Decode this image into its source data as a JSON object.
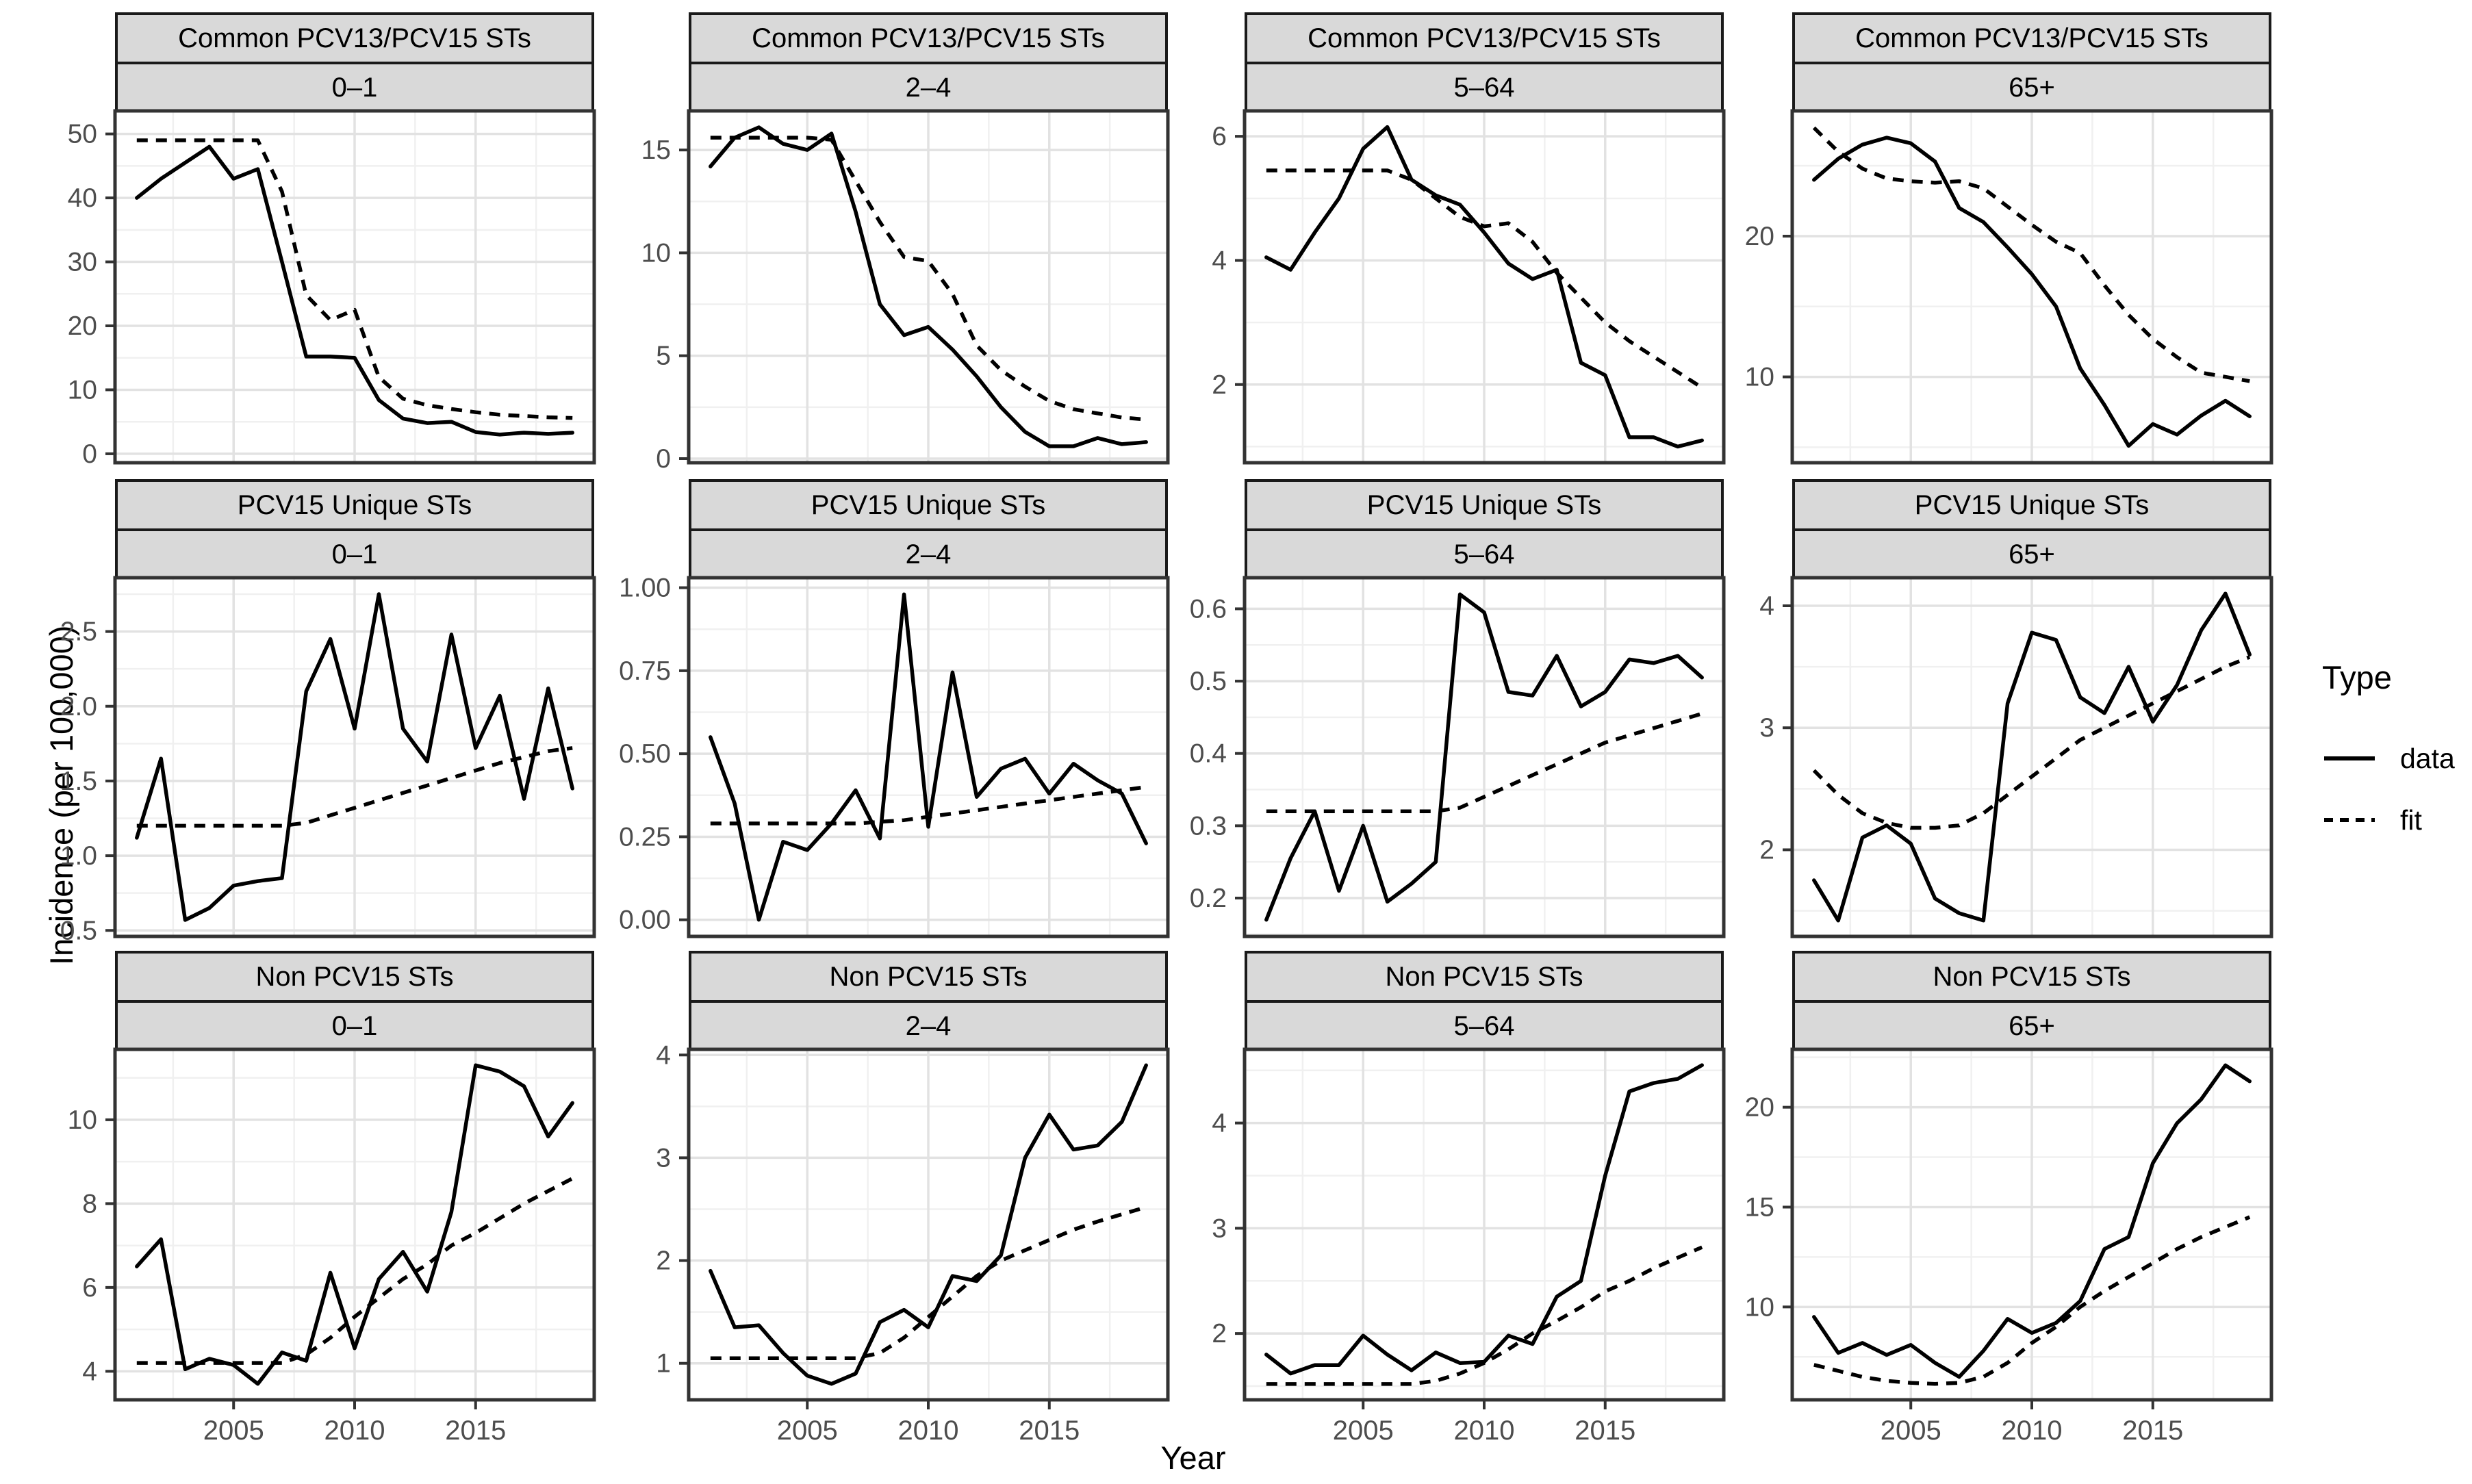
{
  "chart_data": {
    "type": "line",
    "x_label": "Year",
    "y_label": "Incidence (per 100,000)",
    "x": [
      2001,
      2002,
      2003,
      2004,
      2005,
      2006,
      2007,
      2008,
      2009,
      2010,
      2011,
      2012,
      2013,
      2014,
      2015,
      2016,
      2017,
      2018,
      2019
    ],
    "x_domain": [
      2000.1,
      2019.9
    ],
    "x_major_ticks": [
      2005,
      2010,
      2015
    ],
    "x_major_tick_labels": [
      "2005",
      "2010",
      "2015"
    ],
    "x_minor_ticks": [
      2002.5,
      2007.5,
      2012.5,
      2017.5
    ],
    "facet_row_labels": [
      "Common PCV13/PCV15 STs",
      "PCV15 Unique STs",
      "Non PCV15 STs"
    ],
    "facet_col_labels": [
      "0–1",
      "2–4",
      "5–64",
      "65+"
    ],
    "legend": {
      "title": "Type",
      "entries": [
        {
          "label": "data",
          "style": "solid"
        },
        {
          "label": "fit",
          "style": "dashed"
        }
      ]
    },
    "panels": [
      {
        "facet_row": "Common PCV13/PCV15 STs",
        "facet_col": "0–1",
        "row": 0,
        "col": 0,
        "y_ticks": [
          0,
          10,
          20,
          30,
          40,
          50
        ],
        "y_tick_labels": [
          "0",
          "10",
          "20",
          "30",
          "40",
          "50"
        ],
        "y_domain": [
          -1.4,
          53.6
        ],
        "series": {
          "data": [
            40,
            43,
            45.5,
            48,
            43,
            44.5,
            30,
            15.2,
            15.2,
            15,
            8.4,
            5.5,
            4.8,
            5.0,
            3.4,
            3.0,
            3.3,
            3.1,
            3.3
          ],
          "fit": [
            49,
            49,
            49,
            49,
            49,
            49,
            41,
            24.8,
            20.9,
            22.5,
            12,
            8.6,
            7.6,
            7.0,
            6.5,
            6.1,
            5.9,
            5.7,
            5.6
          ]
        }
      },
      {
        "facet_row": "Common PCV13/PCV15 STs",
        "facet_col": "2–4",
        "row": 0,
        "col": 1,
        "y_ticks": [
          0,
          5,
          10,
          15
        ],
        "y_tick_labels": [
          "0",
          "5",
          "10",
          "15"
        ],
        "y_domain": [
          -0.2,
          16.9
        ],
        "series": {
          "data": [
            14.2,
            15.6,
            16.1,
            15.3,
            15.0,
            15.8,
            12.0,
            7.5,
            6.0,
            6.4,
            5.3,
            4.0,
            2.5,
            1.3,
            0.6,
            0.6,
            1.0,
            0.7,
            0.8
          ],
          "fit": [
            15.6,
            15.6,
            15.6,
            15.6,
            15.6,
            15.5,
            13.5,
            11.5,
            9.8,
            9.6,
            8.0,
            5.5,
            4.3,
            3.5,
            2.8,
            2.4,
            2.2,
            2.0,
            1.9
          ]
        }
      },
      {
        "facet_row": "Common PCV13/PCV15 STs",
        "facet_col": "5–64",
        "row": 0,
        "col": 2,
        "y_ticks": [
          2,
          4,
          6
        ],
        "y_tick_labels": [
          "2",
          "4",
          "6"
        ],
        "y_domain": [
          0.74,
          6.41
        ],
        "series": {
          "data": [
            4.05,
            3.85,
            4.45,
            5.0,
            5.8,
            6.15,
            5.3,
            5.05,
            4.9,
            4.45,
            3.95,
            3.7,
            3.85,
            2.35,
            2.15,
            1.15,
            1.15,
            1.0,
            1.1
          ],
          "fit": [
            5.45,
            5.45,
            5.45,
            5.45,
            5.45,
            5.45,
            5.3,
            5.0,
            4.7,
            4.55,
            4.6,
            4.3,
            3.8,
            3.4,
            3.0,
            2.7,
            2.45,
            2.2,
            1.95
          ]
        }
      },
      {
        "facet_row": "Common PCV13/PCV15 STs",
        "facet_col": "65+",
        "row": 0,
        "col": 3,
        "y_ticks": [
          10,
          20
        ],
        "y_tick_labels": [
          "10",
          "20"
        ],
        "y_domain": [
          3.9,
          28.9
        ],
        "series": {
          "data": [
            24.0,
            25.5,
            26.5,
            27.0,
            26.6,
            25.3,
            22.0,
            21.0,
            19.2,
            17.3,
            15.0,
            10.6,
            8.0,
            5.1,
            6.65,
            5.9,
            7.25,
            8.3,
            7.2
          ],
          "fit": [
            27.7,
            26.0,
            24.8,
            24.1,
            23.9,
            23.8,
            23.9,
            23.4,
            22.1,
            20.8,
            19.6,
            18.8,
            16.5,
            14.4,
            12.7,
            11.4,
            10.3,
            10.0,
            9.7
          ]
        }
      },
      {
        "facet_row": "PCV15 Unique STs",
        "facet_col": "0–1",
        "row": 1,
        "col": 0,
        "y_ticks": [
          0.5,
          1.0,
          1.5,
          2.0,
          2.5
        ],
        "y_tick_labels": [
          "0.5",
          "1.0",
          "1.5",
          "2.0",
          "2.5"
        ],
        "y_domain": [
          0.46,
          2.86
        ],
        "series": {
          "data": [
            1.12,
            1.65,
            0.57,
            0.65,
            0.8,
            0.83,
            0.85,
            2.1,
            2.45,
            1.85,
            2.75,
            1.85,
            1.63,
            2.48,
            1.72,
            2.07,
            1.38,
            2.12,
            1.45
          ],
          "fit": [
            1.2,
            1.2,
            1.2,
            1.2,
            1.2,
            1.2,
            1.2,
            1.22,
            1.27,
            1.32,
            1.37,
            1.42,
            1.47,
            1.52,
            1.57,
            1.62,
            1.66,
            1.7,
            1.72
          ]
        }
      },
      {
        "facet_row": "PCV15 Unique STs",
        "facet_col": "2–4",
        "row": 1,
        "col": 1,
        "y_ticks": [
          0.0,
          0.25,
          0.5,
          0.75,
          1.0
        ],
        "y_tick_labels": [
          "0.00",
          "0.25",
          "0.50",
          "0.75",
          "1.00"
        ],
        "y_domain": [
          -0.05,
          1.03
        ],
        "series": {
          "data": [
            0.55,
            0.35,
            0.0,
            0.235,
            0.21,
            0.29,
            0.39,
            0.245,
            0.98,
            0.28,
            0.745,
            0.37,
            0.455,
            0.485,
            0.38,
            0.47,
            0.42,
            0.38,
            0.23
          ],
          "fit": [
            0.29,
            0.29,
            0.29,
            0.29,
            0.29,
            0.29,
            0.29,
            0.295,
            0.3,
            0.31,
            0.32,
            0.33,
            0.34,
            0.35,
            0.36,
            0.37,
            0.38,
            0.39,
            0.4
          ]
        }
      },
      {
        "facet_row": "PCV15 Unique STs",
        "facet_col": "5–64",
        "row": 1,
        "col": 2,
        "y_ticks": [
          0.2,
          0.3,
          0.4,
          0.5,
          0.6
        ],
        "y_tick_labels": [
          "0.2",
          "0.3",
          "0.4",
          "0.5",
          "0.6"
        ],
        "y_domain": [
          0.147,
          0.643
        ],
        "series": {
          "data": [
            0.17,
            0.255,
            0.32,
            0.21,
            0.3,
            0.195,
            0.22,
            0.25,
            0.62,
            0.595,
            0.485,
            0.48,
            0.535,
            0.465,
            0.485,
            0.53,
            0.525,
            0.535,
            0.505
          ],
          "fit": [
            0.32,
            0.32,
            0.32,
            0.32,
            0.32,
            0.32,
            0.32,
            0.32,
            0.325,
            0.34,
            0.355,
            0.37,
            0.385,
            0.4,
            0.415,
            0.425,
            0.435,
            0.445,
            0.455
          ]
        }
      },
      {
        "facet_row": "PCV15 Unique STs",
        "facet_col": "65+",
        "row": 1,
        "col": 3,
        "y_ticks": [
          2,
          3,
          4
        ],
        "y_tick_labels": [
          "2",
          "3",
          "4"
        ],
        "y_domain": [
          1.29,
          4.23
        ],
        "series": {
          "data": [
            1.75,
            1.42,
            2.1,
            2.2,
            2.05,
            1.6,
            1.48,
            1.42,
            3.2,
            3.78,
            3.72,
            3.25,
            3.12,
            3.5,
            3.05,
            3.35,
            3.8,
            4.1,
            3.6
          ],
          "fit": [
            2.65,
            2.45,
            2.3,
            2.22,
            2.18,
            2.18,
            2.2,
            2.3,
            2.45,
            2.6,
            2.75,
            2.9,
            3.0,
            3.1,
            3.2,
            3.3,
            3.4,
            3.5,
            3.58
          ]
        }
      },
      {
        "facet_row": "Non PCV15 STs",
        "facet_col": "0–1",
        "row": 2,
        "col": 0,
        "y_ticks": [
          4,
          6,
          8,
          10
        ],
        "y_tick_labels": [
          "4",
          "6",
          "8",
          "10"
        ],
        "y_domain": [
          3.32,
          11.68
        ],
        "series": {
          "data": [
            6.5,
            7.15,
            4.05,
            4.3,
            4.15,
            3.7,
            4.45,
            4.25,
            6.35,
            4.55,
            6.2,
            6.85,
            5.9,
            7.8,
            11.3,
            11.15,
            10.8,
            9.6,
            10.4
          ],
          "fit": [
            4.2,
            4.2,
            4.2,
            4.2,
            4.2,
            4.2,
            4.2,
            4.4,
            4.8,
            5.3,
            5.75,
            6.2,
            6.55,
            7.0,
            7.3,
            7.65,
            8.0,
            8.3,
            8.6
          ]
        }
      },
      {
        "facet_row": "Non PCV15 STs",
        "facet_col": "2–4",
        "row": 2,
        "col": 1,
        "y_ticks": [
          1,
          2,
          3,
          4
        ],
        "y_tick_labels": [
          "1",
          "2",
          "3",
          "4"
        ],
        "y_domain": [
          0.645,
          4.055
        ],
        "series": {
          "data": [
            1.9,
            1.35,
            1.37,
            1.1,
            0.88,
            0.8,
            0.9,
            1.4,
            1.52,
            1.35,
            1.85,
            1.8,
            2.05,
            3.0,
            3.42,
            3.08,
            3.12,
            3.35,
            3.9
          ],
          "fit": [
            1.05,
            1.05,
            1.05,
            1.05,
            1.05,
            1.05,
            1.05,
            1.1,
            1.25,
            1.45,
            1.65,
            1.85,
            2.0,
            2.1,
            2.2,
            2.3,
            2.38,
            2.45,
            2.52
          ]
        }
      },
      {
        "facet_row": "Non PCV15 STs",
        "facet_col": "5–64",
        "row": 2,
        "col": 2,
        "y_ticks": [
          2,
          3,
          4
        ],
        "y_tick_labels": [
          "2",
          "3",
          "4"
        ],
        "y_domain": [
          1.37,
          4.7
        ],
        "series": {
          "data": [
            1.8,
            1.62,
            1.7,
            1.7,
            1.98,
            1.8,
            1.65,
            1.82,
            1.72,
            1.73,
            1.98,
            1.9,
            2.35,
            2.5,
            3.5,
            4.3,
            4.38,
            4.42,
            4.55
          ],
          "fit": [
            1.52,
            1.52,
            1.52,
            1.52,
            1.52,
            1.52,
            1.52,
            1.55,
            1.62,
            1.72,
            1.85,
            2.0,
            2.12,
            2.25,
            2.4,
            2.5,
            2.62,
            2.72,
            2.82
          ]
        }
      },
      {
        "facet_row": "Non PCV15 STs",
        "facet_col": "65+",
        "row": 2,
        "col": 3,
        "y_ticks": [
          10,
          15,
          20
        ],
        "y_tick_labels": [
          "10",
          "15",
          "20"
        ],
        "y_domain": [
          5.35,
          22.9
        ],
        "series": {
          "data": [
            9.5,
            7.7,
            8.2,
            7.6,
            8.1,
            7.2,
            6.5,
            7.8,
            9.4,
            8.7,
            9.2,
            10.3,
            12.9,
            13.5,
            17.2,
            19.2,
            20.4,
            22.1,
            21.3
          ],
          "fit": [
            7.1,
            6.8,
            6.5,
            6.3,
            6.2,
            6.15,
            6.2,
            6.5,
            7.2,
            8.2,
            9.0,
            10.0,
            10.8,
            11.5,
            12.2,
            12.9,
            13.5,
            14.0,
            14.5
          ]
        }
      }
    ],
    "style": {
      "strip_bg": "#d9d9d9",
      "border_color": "#1a1a1a",
      "panel_border_color": "#333333",
      "grid_major_color": "#e2e2e2",
      "grid_minor_color": "#f0f0f0",
      "line_color": "#000000",
      "tick_label_color": "#4d4d4d"
    }
  }
}
